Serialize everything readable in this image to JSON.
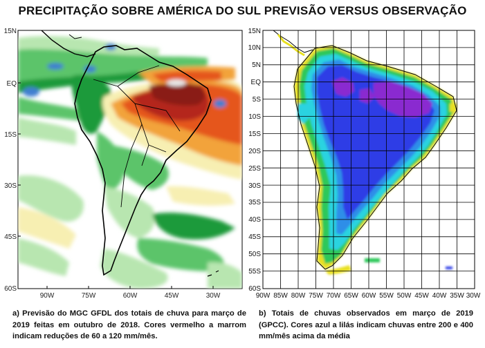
{
  "title": "PRECIPITAÇÃO SOBRE AMÉRICA DO SUL  PREVISÃO VERSUS OBSERVAÇÃO",
  "left_map": {
    "lat_labels": [
      "15N",
      "EQ",
      "15S",
      "30S",
      "45S",
      "60S"
    ],
    "lon_labels": [
      "90W",
      "75W",
      "60W",
      "45W",
      "30W"
    ],
    "colors": {
      "dark_green": "#1f9a3a",
      "mid_green": "#5cc46a",
      "light_green": "#b8e6b0",
      "pale_yellow": "#f7efb2",
      "orange": "#f2a33a",
      "red_orange": "#e5561f",
      "dark_red": "#b4271b",
      "brown": "#8a1f16",
      "blue": "#3f7fd0"
    },
    "caption": "a) Previsão do MGC GFDL dos totais de chuva para março de 2019 feitas  em outubro de 2018. Cores vermelho a marrom indicam reduções de 60 a 120 mm/mês."
  },
  "right_map": {
    "lat_labels": [
      "15N",
      "10N",
      "5N",
      "EQ",
      "5S",
      "10S",
      "15S",
      "20S",
      "25S",
      "30S",
      "35S",
      "40S",
      "45S",
      "50S",
      "55S",
      "60S"
    ],
    "lon_labels": [
      "90W",
      "85W",
      "80W",
      "75W",
      "70W",
      "65W",
      "60W",
      "55W",
      "50W",
      "45W",
      "40W",
      "35W",
      "30W"
    ],
    "colors": {
      "purple": "#8a2bd0",
      "blue": "#2d3ee6",
      "light_blue": "#2f8ee8",
      "cyan": "#2ad3e0",
      "green": "#2fc85a",
      "yellow": "#e8e020"
    },
    "caption": "b) Totais de chuvas observados em março de 2019 (GPCC). Cores azul a lilás indicam chuvas entre 200 e 400 mm/mês acima da média"
  }
}
